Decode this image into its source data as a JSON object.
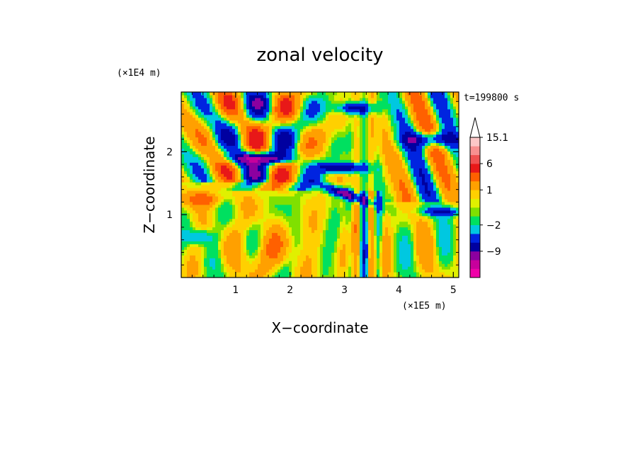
{
  "chart_data": {
    "type": "heatmap",
    "title": "zonal velocity",
    "xlabel": "X−coordinate",
    "ylabel": "Z−coordinate",
    "x_scale_label": "(×1E5 m)",
    "y_scale_label": "(×1E4 m)",
    "time_label": "t=199800 s",
    "xlim": [
      0,
      5.1
    ],
    "ylim": [
      0,
      2.95
    ],
    "x_ticks": [
      1,
      2,
      3,
      4,
      5
    ],
    "x_tick_labels": [
      "1",
      "2",
      "3",
      "4",
      "5"
    ],
    "y_ticks": [
      1,
      2
    ],
    "y_tick_labels": [
      "1",
      "2"
    ],
    "colorbar": {
      "levels": [
        -15,
        -12,
        -9,
        -6,
        -4,
        -2,
        -1,
        0,
        0.5,
        1,
        2,
        4,
        6,
        9,
        12,
        15.1
      ],
      "colors": [
        "#f000a8",
        "#c8009c",
        "#8c00a0",
        "#0000a0",
        "#0024e0",
        "#00c8e0",
        "#00e060",
        "#80e000",
        "#e0f000",
        "#ffd000",
        "#ffa000",
        "#ff6000",
        "#e81818",
        "#f05050",
        "#f89090",
        "#fcc8c8"
      ],
      "tick_values": [
        15.1,
        6,
        1,
        -2,
        -9
      ],
      "tick_labels": [
        "15.1",
        "6",
        "1",
        "−2",
        "−9"
      ],
      "extend": "max"
    }
  }
}
